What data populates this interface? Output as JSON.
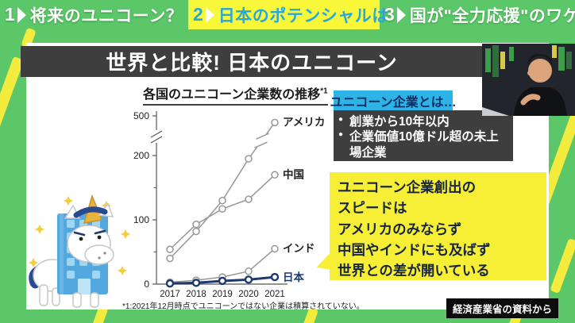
{
  "tabs": [
    {
      "number": "1",
      "label": "将来のユニコーン？",
      "active": false
    },
    {
      "number": "2",
      "label": "日本のポテンシャルは",
      "active": true
    },
    {
      "number": "3",
      "label": "国が\"全力応援\"のワケ",
      "active": false
    }
  ],
  "title_bar": {
    "title": "世界と比較! 日本のユニコーン"
  },
  "chart_data": {
    "type": "line",
    "title": "各国のユニコーン企業数の推移",
    "title_sup": "*1",
    "x": [
      2017,
      2018,
      2019,
      2020,
      2021
    ],
    "series": [
      {
        "name": "アメリカ",
        "values": [
          40,
          82,
          130,
          195,
          450
        ],
        "color": "#979797",
        "emphasis": false,
        "break_last_segment": true
      },
      {
        "name": "中国",
        "values": [
          54,
          93,
          117,
          132,
          170
        ],
        "color": "#979797",
        "emphasis": false
      },
      {
        "name": "インド",
        "values": [
          3,
          6,
          11,
          20,
          55
        ],
        "color": "#979797",
        "emphasis": false
      },
      {
        "name": "日本",
        "values": [
          1,
          2,
          5,
          7,
          11
        ],
        "color": "#1d3a6e",
        "emphasis": true
      }
    ],
    "ylabel": "",
    "xlabel": "",
    "ylim": [
      0,
      500
    ],
    "y_ticks": [
      0,
      100,
      200,
      500
    ],
    "y_minor_ticks": [
      50,
      150
    ],
    "axis_break_between": [
      200,
      500
    ],
    "grid": false,
    "legend_position": "right-of-last-point",
    "footnote": "*1:2021年12月時点でユニコーンではない企業は積算されていない。"
  },
  "definition": {
    "header": "ユニコーン企業とは…",
    "bullets": [
      "創業から10年以内",
      "企業価値10億ドル超の未上場企業"
    ]
  },
  "callout": {
    "lines": [
      "ユニコーン企業創出の",
      "スピードは",
      "アメリカのみならず",
      "中国やインドにも及ばず",
      "世界との差が開いている"
    ]
  },
  "source": "経済産業省の資料から",
  "icons": [
    "unicorn-building-icon",
    "presenter-video",
    "sparkle-icon",
    "chevron-right-icon"
  ],
  "colors": {
    "frame_green": "#5cc768",
    "stripe_yellow": "#f3eb3d",
    "bar_dark": "#3e3e3e",
    "def_header_cyan": "#2eb3e6",
    "def_header_text": "#0d2f66",
    "callout_yellow": "#f6ef35",
    "callout_text": "#18253f",
    "japan_navy": "#1d3a6e",
    "series_gray": "#979797",
    "tab_active_bg": "#f8f73a",
    "tab_active_text": "#28a7dc"
  }
}
